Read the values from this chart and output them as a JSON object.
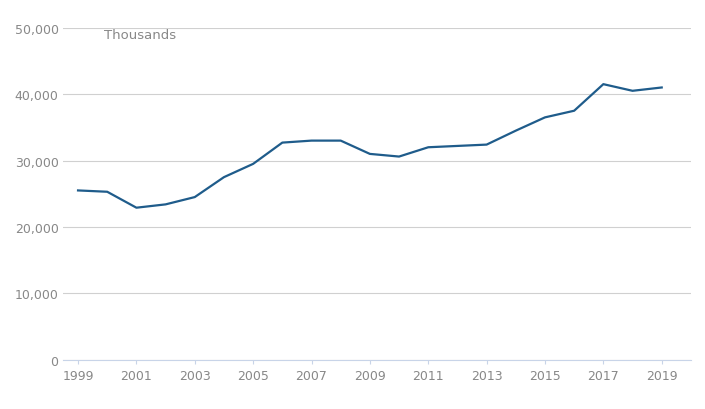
{
  "years": [
    1999,
    2000,
    2001,
    2002,
    2003,
    2004,
    2005,
    2006,
    2007,
    2008,
    2009,
    2010,
    2011,
    2012,
    2013,
    2014,
    2015,
    2016,
    2017,
    2018,
    2019
  ],
  "values": [
    25500,
    25300,
    22900,
    23400,
    24500,
    27500,
    29500,
    32700,
    33000,
    33000,
    31000,
    30600,
    32000,
    32200,
    32400,
    34500,
    36500,
    37500,
    41500,
    40500,
    41000
  ],
  "line_color": "#1f5c8b",
  "line_width": 1.6,
  "ylim": [
    0,
    50000
  ],
  "yticks": [
    0,
    10000,
    20000,
    30000,
    40000,
    50000
  ],
  "xticks": [
    1999,
    2001,
    2003,
    2005,
    2007,
    2009,
    2011,
    2013,
    2015,
    2017,
    2019
  ],
  "grid_color": "#d0d0d0",
  "bottom_spine_color": "#c8d4e8",
  "background_color": "#ffffff",
  "label_text": "Thousands",
  "label_fontsize": 9.5,
  "tick_fontsize": 9,
  "tick_color": "#888888",
  "xlim_left": 1998.5,
  "xlim_right": 2020.0
}
